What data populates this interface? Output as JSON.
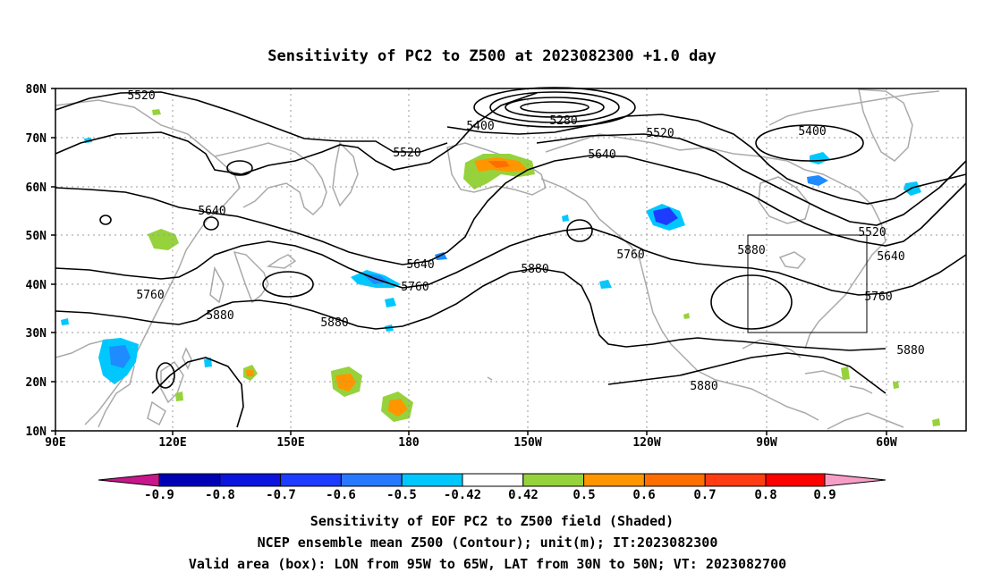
{
  "title": "Sensitivity of PC2 to Z500 at 2023082300 +1.0 day",
  "lat_labels": [
    "80N",
    "70N",
    "60N",
    "50N",
    "40N",
    "30N",
    "20N",
    "10N"
  ],
  "lon_labels": [
    "90E",
    "120E",
    "150E",
    "180",
    "150W",
    "120W",
    "90W",
    "60W"
  ],
  "contour_labels": [
    {
      "text": "5520"
    },
    {
      "text": "5400"
    },
    {
      "text": "5280"
    },
    {
      "text": "5520"
    },
    {
      "text": "5400"
    },
    {
      "text": "5520"
    },
    {
      "text": "5640"
    },
    {
      "text": "5640"
    },
    {
      "text": "5760"
    },
    {
      "text": "5880"
    },
    {
      "text": "5880"
    },
    {
      "text": "5640"
    },
    {
      "text": "5760"
    },
    {
      "text": "5880"
    },
    {
      "text": "5760"
    },
    {
      "text": "5880"
    },
    {
      "text": "5520"
    },
    {
      "text": "5640"
    },
    {
      "text": "5760"
    },
    {
      "text": "5880"
    },
    {
      "text": "5880"
    }
  ],
  "colorbar": {
    "labels": [
      "-0.9",
      "-0.8",
      "-0.7",
      "-0.6",
      "-0.5",
      "-0.42",
      "0.42",
      "0.5",
      "0.6",
      "0.7",
      "0.8",
      "0.9"
    ],
    "colors": {
      "under": "#c8168c",
      "b1": "#0000b4",
      "b2": "#0a14dc",
      "b3": "#1e3cff",
      "b4": "#2878ff",
      "b5": "#1e8cff",
      "b6": "#00c8ff",
      "white": "#ffffff",
      "g1": "#96d23c",
      "o1": "#ff9600",
      "o2": "#ff6e00",
      "o3": "#ff3c14",
      "r1": "#ff0000",
      "over": "#f79ec8"
    }
  },
  "footer": {
    "line1": "Sensitivity of EOF PC2 to Z500 field (Shaded)",
    "line2": "NCEP ensemble mean Z500 (Contour); unit(m); IT:2023082300",
    "line3": "Valid area (box): LON from 95W to 65W, LAT from 30N to 50N; VT: 2023082700"
  }
}
